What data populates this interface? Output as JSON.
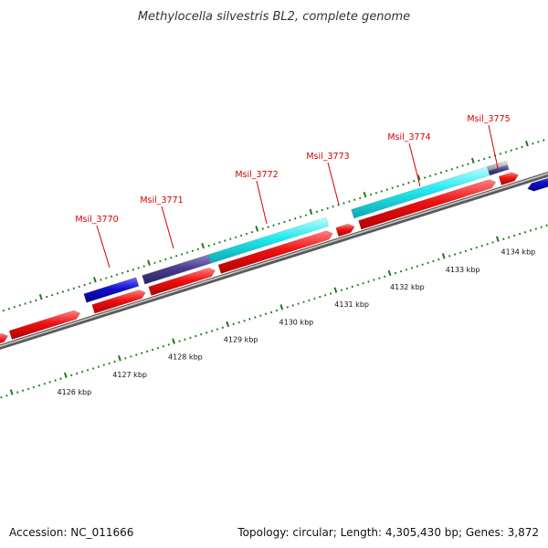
{
  "title": "Methylocella silvestris BL2, complete genome",
  "footer": {
    "accession": "Accession: NC_011666",
    "summary": "Topology: circular; Length: 4,305,430 bp; Genes: 3,872"
  },
  "scale": {
    "tick_labels": [
      "4126 kbp",
      "4127 kbp",
      "4128 kbp",
      "4129 kbp",
      "4130 kbp",
      "4131 kbp",
      "4132 kbp",
      "4133 kbp",
      "4134 kbp"
    ]
  },
  "gene_labels": [
    "Msil_3770",
    "Msil_3771",
    "Msil_3772",
    "Msil_3773",
    "Msil_3774",
    "Msil_3775"
  ],
  "colors": {
    "forward_feature": "#ee1111",
    "reverse_feature": "#1111cc",
    "cds_highlight": "#22e8f0",
    "purple_feature": "#4a3f8f",
    "green_feature": "#22bb22",
    "gray_feature": "#b8b8b8",
    "backbone": "#8a8a8a",
    "tick": "#1a7a1a",
    "label": "#d40000"
  }
}
